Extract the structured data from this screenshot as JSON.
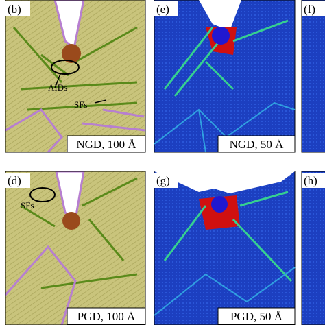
{
  "panels": [
    {
      "label": "(b)",
      "caption": "NGD, 100 Å"
    },
    {
      "label": "(e)",
      "caption": "NGD, 50 Å"
    },
    {
      "label": "(f)"
    },
    {
      "label": "(d)",
      "caption": "PGD, 100 Å"
    },
    {
      "label": "(g)",
      "caption": "PGD, 50 Å"
    },
    {
      "label": "(h)"
    }
  ],
  "annotations": [
    "AIDs",
    "SFs",
    "SFs"
  ]
}
